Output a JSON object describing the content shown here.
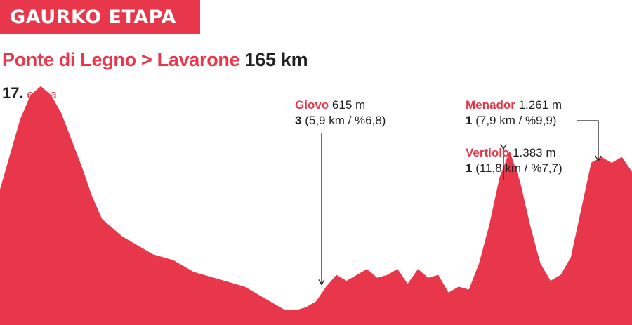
{
  "header": {
    "badge": "GAURKO ETAPA"
  },
  "route": {
    "title": "Ponte di Legno > Lavarone",
    "distance": "165 km"
  },
  "stage": {
    "number": "17.",
    "label": "etapa"
  },
  "climbs": [
    {
      "name": "Giovo",
      "altitude": "615 m",
      "category": "3",
      "details": "(5,9 km / %6,8)"
    },
    {
      "name": "Menador",
      "altitude": "1.261 m",
      "category": "1",
      "details": "(7,9 km / %9,9)"
    },
    {
      "name": "Vertiolo",
      "altitude": "1.383 m",
      "category": "1",
      "details": "(11,8 km / %7,7)"
    }
  ],
  "colors": {
    "profile": "#e8374a",
    "text": "#222222",
    "badge_text": "#ffffff"
  },
  "chart_data": {
    "type": "area",
    "title": "",
    "xlabel": "",
    "ylabel": "",
    "series": [
      {
        "values": [
          0.46,
          0.58,
          0.7,
          0.78,
          0.81,
          0.78,
          0.72,
          0.63,
          0.54,
          0.44,
          0.36,
          0.33,
          0.3,
          0.28,
          0.26,
          0.24,
          0.23,
          0.22,
          0.2,
          0.18,
          0.17,
          0.16,
          0.15,
          0.14,
          0.13,
          0.11,
          0.09,
          0.07,
          0.05,
          0.05,
          0.06,
          0.08,
          0.13,
          0.17,
          0.15,
          0.17,
          0.19,
          0.16,
          0.17,
          0.19,
          0.14,
          0.19,
          0.16,
          0.17,
          0.11,
          0.13,
          0.12,
          0.21,
          0.34,
          0.5,
          0.59,
          0.49,
          0.34,
          0.21,
          0.15,
          0.17,
          0.23,
          0.39,
          0.55,
          0.57,
          0.55,
          0.57,
          0.52
        ]
      }
    ]
  }
}
